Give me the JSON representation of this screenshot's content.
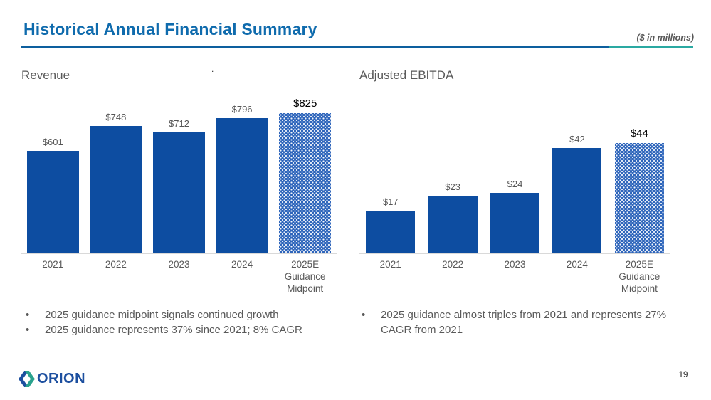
{
  "slide": {
    "title": "Historical Annual Financial Summary",
    "units_note": "($ in millions)",
    "stray_dot": ".",
    "page_number": "19",
    "logo_text": "ORION"
  },
  "colors": {
    "title_blue": "#0f6bad",
    "rule_blue": "#0d5f9e",
    "accent_teal": "#2aa9a2",
    "bar_blue": "#0d4da1",
    "hatched_bar_blue": "#2f66bb",
    "text_gray": "#595959",
    "logo_blue": "#1d4f9f",
    "logo_teal": "#2aa28d"
  },
  "chart_data": [
    {
      "type": "bar",
      "title": "Revenue",
      "categories": [
        "2021",
        "2022",
        "2023",
        "2024",
        "2025E\nGuidance\nMidpoint"
      ],
      "values": [
        601,
        748,
        712,
        796,
        825
      ],
      "value_labels": [
        "$601",
        "$748",
        "$712",
        "$796",
        "$825"
      ],
      "hatched": [
        false,
        false,
        false,
        false,
        true
      ],
      "emphasized": [
        false,
        false,
        false,
        false,
        true
      ],
      "ylim": [
        0,
        825
      ],
      "xlabel": "",
      "ylabel": "",
      "grid": false,
      "legend": false
    },
    {
      "type": "bar",
      "title": "Adjusted EBITDA",
      "categories": [
        "2021",
        "2022",
        "2023",
        "2024",
        "2025E\nGuidance\nMidpoint"
      ],
      "values": [
        17,
        23,
        24,
        42,
        44
      ],
      "value_labels": [
        "$17",
        "$23",
        "$24",
        "$42",
        "$44"
      ],
      "hatched": [
        false,
        false,
        false,
        false,
        true
      ],
      "emphasized": [
        false,
        false,
        false,
        false,
        true
      ],
      "ylim": [
        0,
        44
      ],
      "xlabel": "",
      "ylabel": "",
      "grid": false,
      "legend": false
    }
  ],
  "bullets_left": [
    "2025 guidance midpoint signals continued growth",
    "2025 guidance represents 37% since 2021; 8% CAGR"
  ],
  "bullets_right": [
    "2025 guidance almost triples from 2021 and represents 27% CAGR from 2021"
  ]
}
